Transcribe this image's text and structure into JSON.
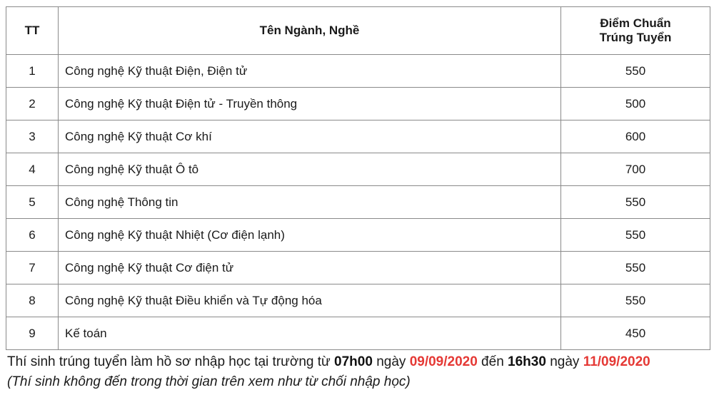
{
  "table": {
    "headers": {
      "tt": "TT",
      "name": "Tên Ngành, Nghề",
      "score_line1": "Điểm Chuẩn",
      "score_line2": "Trúng Tuyển"
    },
    "rows": [
      {
        "tt": "1",
        "name": "Công nghệ Kỹ thuật Điện, Điện tử",
        "score": "550"
      },
      {
        "tt": "2",
        "name": "Công nghệ Kỹ thuật Điện tử - Truyền thông",
        "score": "500"
      },
      {
        "tt": "3",
        "name": "Công nghệ Kỹ thuật Cơ khí",
        "score": "600"
      },
      {
        "tt": "4",
        "name": "Công nghệ Kỹ thuật Ô tô",
        "score": "700"
      },
      {
        "tt": "5",
        "name": "Công nghệ Thông tin",
        "score": "550"
      },
      {
        "tt": "6",
        "name": "Công nghệ Kỹ thuật Nhiệt (Cơ điện lạnh)",
        "score": "550"
      },
      {
        "tt": "7",
        "name": "Công nghệ Kỹ thuật Cơ điện tử",
        "score": "550"
      },
      {
        "tt": "8",
        "name": "Công nghệ Kỹ thuật Điều khiển và Tự động hóa",
        "score": "550"
      },
      {
        "tt": "9",
        "name": "Kế toán",
        "score": "450"
      }
    ]
  },
  "footer": {
    "p1": "Thí sinh trúng tuyển làm hồ sơ nhập học tại trường từ ",
    "time1": "07h00",
    "p2": " ngày ",
    "date1": "09/09/2020",
    "p3": " đến ",
    "time2": "16h30",
    "p4": " ngày ",
    "date2": "11/09/2020",
    "note": "(Thí sinh không đến trong thời gian trên xem như từ chối nhập học)"
  },
  "colors": {
    "date": "#e53935",
    "border": "#8a8a8a"
  }
}
